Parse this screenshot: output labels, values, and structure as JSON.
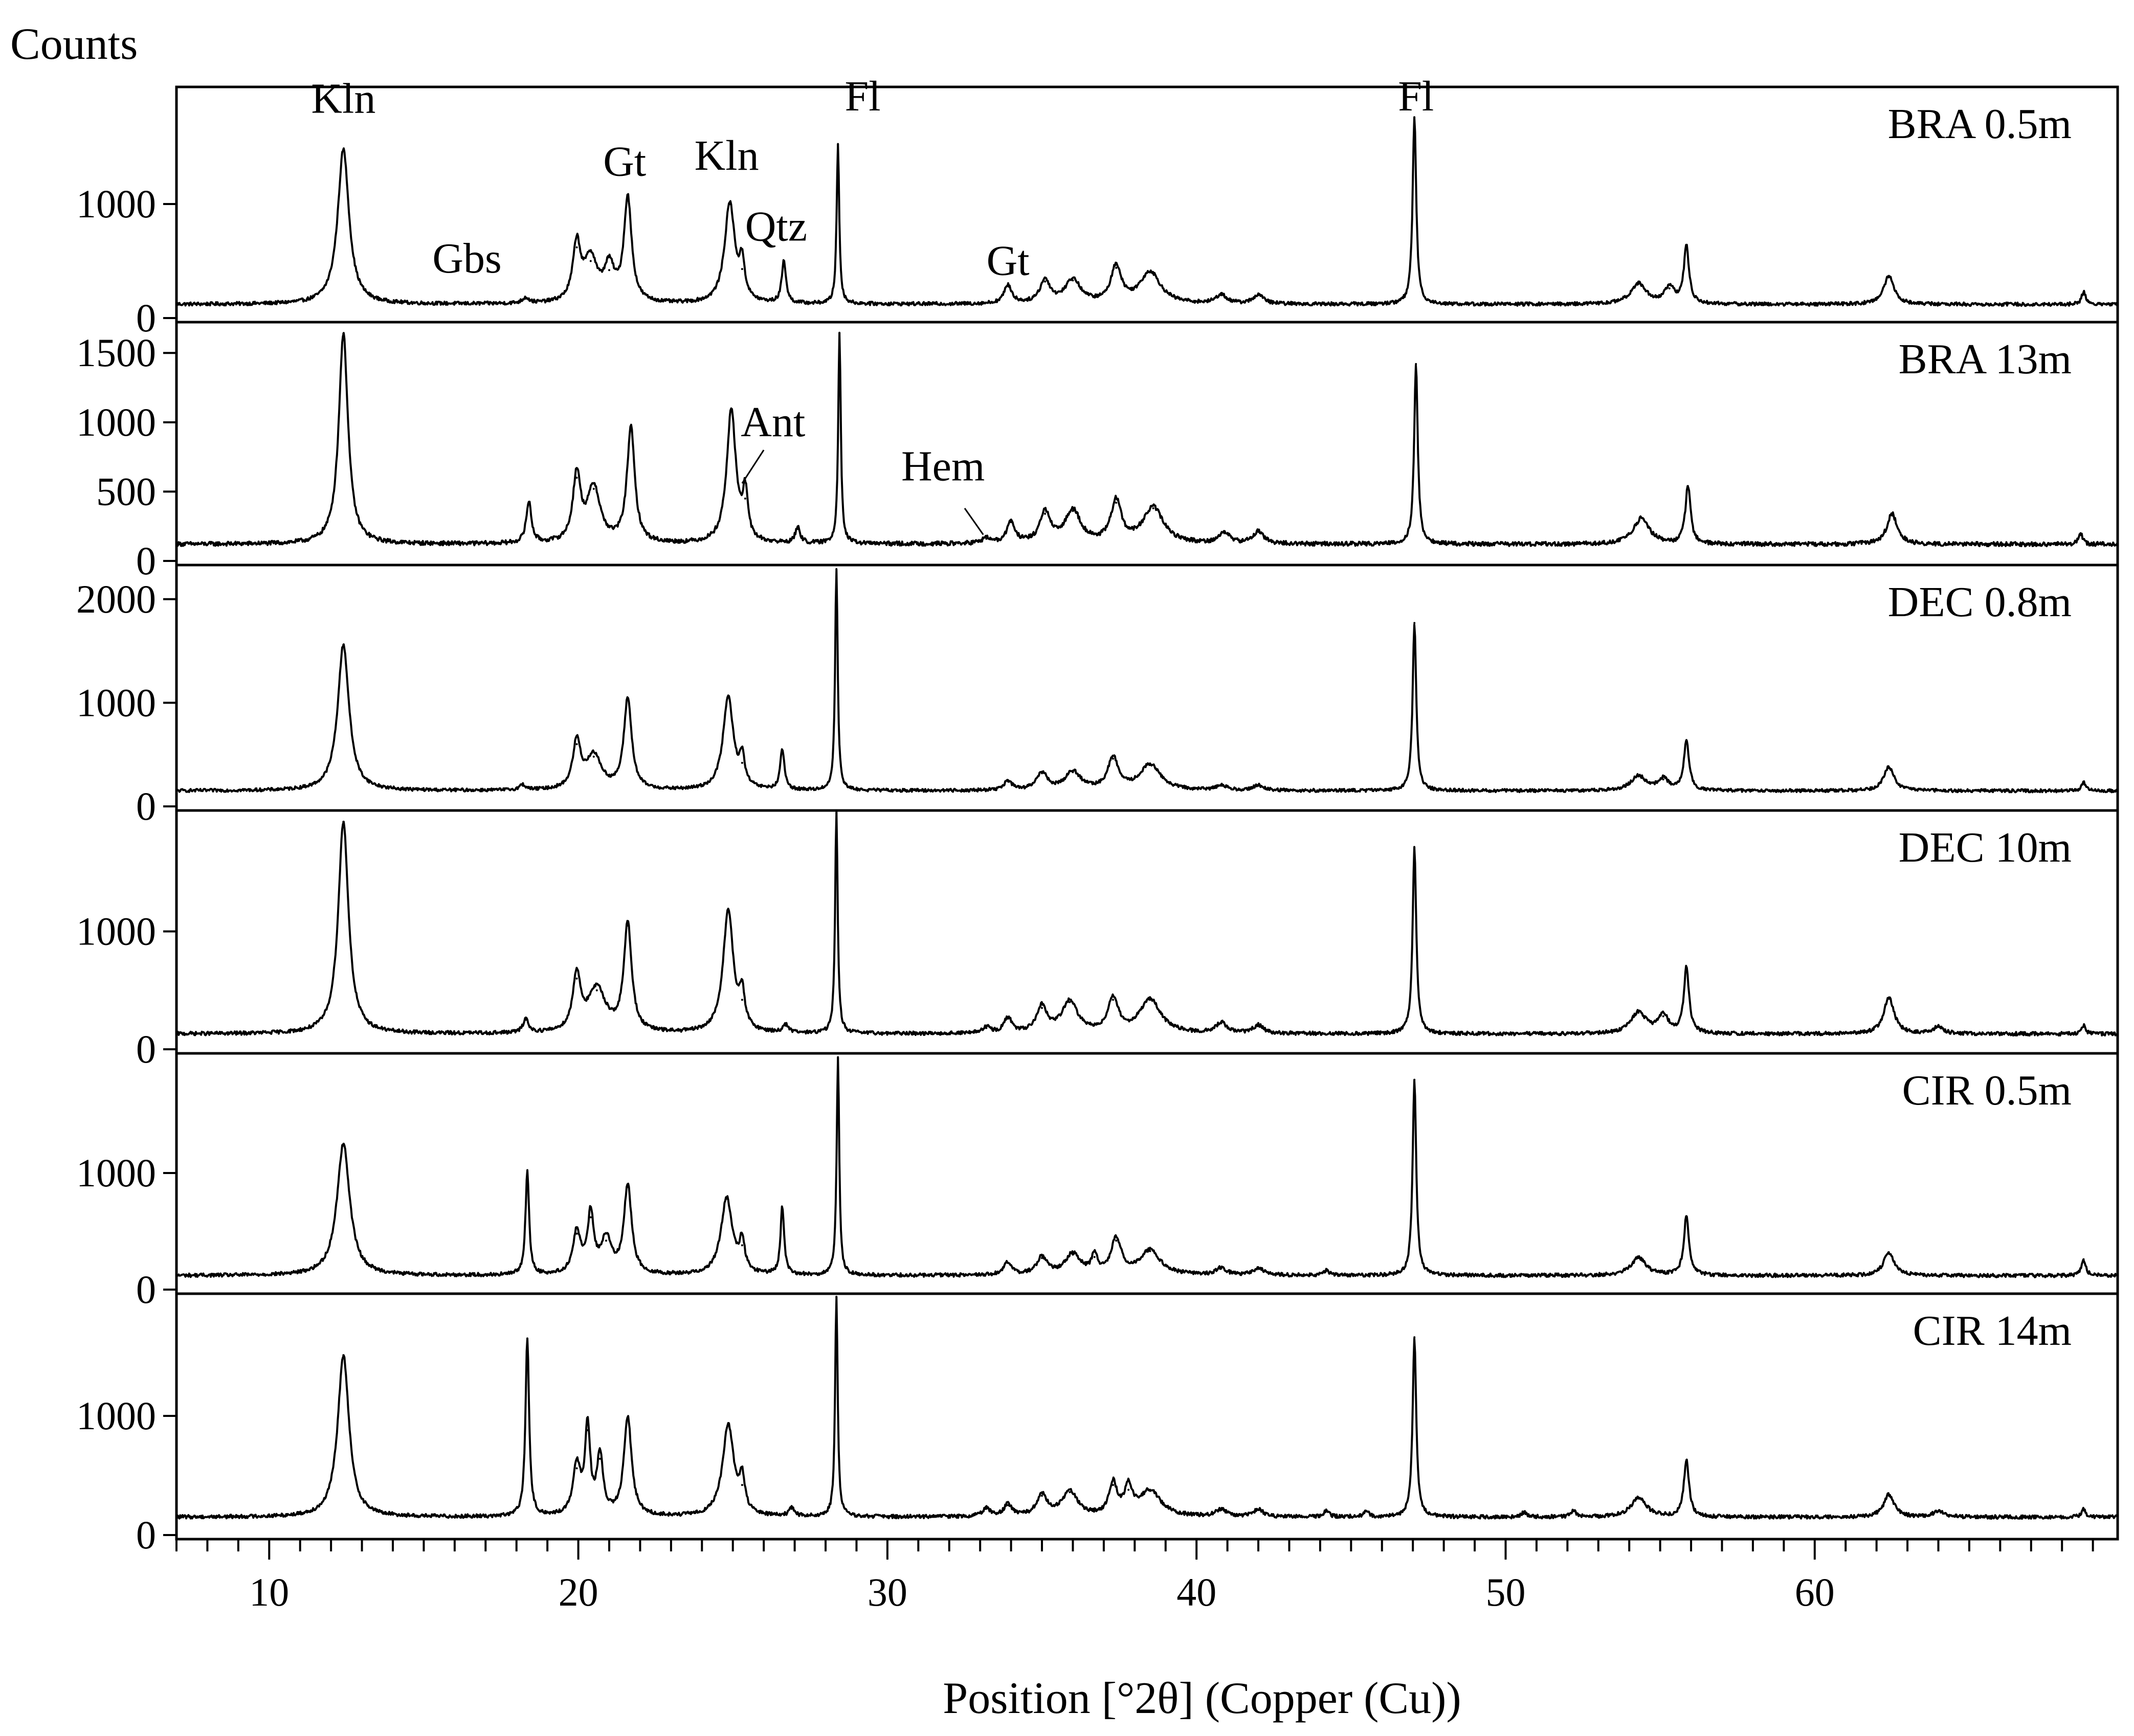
{
  "chart_data": {
    "type": "line",
    "y_axis_title": "Counts",
    "x_axis_title": "Position [°2θ] (Copper (Cu))",
    "xlim": [
      7,
      69.8
    ],
    "x_ticks": [
      10,
      20,
      30,
      40,
      50,
      60
    ],
    "panels": [
      {
        "label": "BRA 0.5m",
        "ylim": [
          0,
          2000
        ],
        "y_ticks": [
          0,
          1000
        ],
        "baseline": 120,
        "peaks": [
          {
            "x": 12.4,
            "y": 1480,
            "w": 0.22
          },
          {
            "x": 18.3,
            "y": 170,
            "w": 0.12
          },
          {
            "x": 19.95,
            "y": 620,
            "w": 0.15
          },
          {
            "x": 20.4,
            "y": 500,
            "w": 0.25
          },
          {
            "x": 21.0,
            "y": 420,
            "w": 0.2
          },
          {
            "x": 21.6,
            "y": 1030,
            "w": 0.15
          },
          {
            "x": 24.9,
            "y": 1000,
            "w": 0.2
          },
          {
            "x": 25.3,
            "y": 430,
            "w": 0.1
          },
          {
            "x": 26.65,
            "y": 500,
            "w": 0.08
          },
          {
            "x": 28.4,
            "y": 1520,
            "w": 0.05
          },
          {
            "x": 33.9,
            "y": 280,
            "w": 0.15
          },
          {
            "x": 35.1,
            "y": 320,
            "w": 0.2
          },
          {
            "x": 36.0,
            "y": 330,
            "w": 0.3
          },
          {
            "x": 37.4,
            "y": 440,
            "w": 0.2
          },
          {
            "x": 38.5,
            "y": 400,
            "w": 0.4
          },
          {
            "x": 40.8,
            "y": 200,
            "w": 0.2
          },
          {
            "x": 42.0,
            "y": 200,
            "w": 0.2
          },
          {
            "x": 47.05,
            "y": 1760,
            "w": 0.07
          },
          {
            "x": 54.3,
            "y": 300,
            "w": 0.3
          },
          {
            "x": 55.3,
            "y": 260,
            "w": 0.2
          },
          {
            "x": 55.85,
            "y": 620,
            "w": 0.1
          },
          {
            "x": 62.4,
            "y": 370,
            "w": 0.2
          },
          {
            "x": 68.7,
            "y": 230,
            "w": 0.08
          }
        ]
      },
      {
        "label": "BRA 13m",
        "ylim": [
          0,
          1700
        ],
        "y_ticks": [
          0,
          500,
          1000,
          1500
        ],
        "baseline": 120,
        "peaks": [
          {
            "x": 12.4,
            "y": 1640,
            "w": 0.18
          },
          {
            "x": 18.4,
            "y": 420,
            "w": 0.1
          },
          {
            "x": 19.95,
            "y": 600,
            "w": 0.15
          },
          {
            "x": 20.5,
            "y": 520,
            "w": 0.25
          },
          {
            "x": 21.7,
            "y": 950,
            "w": 0.15
          },
          {
            "x": 24.95,
            "y": 1080,
            "w": 0.18
          },
          {
            "x": 25.4,
            "y": 450,
            "w": 0.1
          },
          {
            "x": 27.1,
            "y": 230,
            "w": 0.1
          },
          {
            "x": 28.45,
            "y": 1640,
            "w": 0.05
          },
          {
            "x": 33.2,
            "y": 160,
            "w": 0.15
          },
          {
            "x": 34.0,
            "y": 280,
            "w": 0.15
          },
          {
            "x": 35.1,
            "y": 340,
            "w": 0.2
          },
          {
            "x": 36.0,
            "y": 360,
            "w": 0.3
          },
          {
            "x": 37.4,
            "y": 420,
            "w": 0.2
          },
          {
            "x": 38.6,
            "y": 380,
            "w": 0.4
          },
          {
            "x": 40.9,
            "y": 200,
            "w": 0.2
          },
          {
            "x": 42.0,
            "y": 210,
            "w": 0.2
          },
          {
            "x": 47.1,
            "y": 1420,
            "w": 0.07
          },
          {
            "x": 54.4,
            "y": 310,
            "w": 0.3
          },
          {
            "x": 55.9,
            "y": 540,
            "w": 0.1
          },
          {
            "x": 62.5,
            "y": 340,
            "w": 0.2
          },
          {
            "x": 68.6,
            "y": 200,
            "w": 0.08
          }
        ]
      },
      {
        "label": "DEC 0.8m",
        "ylim": [
          0,
          2300
        ],
        "y_ticks": [
          0,
          1000,
          2000
        ],
        "baseline": 150,
        "peaks": [
          {
            "x": 12.4,
            "y": 1560,
            "w": 0.22
          },
          {
            "x": 18.2,
            "y": 200,
            "w": 0.12
          },
          {
            "x": 19.95,
            "y": 600,
            "w": 0.15
          },
          {
            "x": 20.5,
            "y": 480,
            "w": 0.3
          },
          {
            "x": 21.6,
            "y": 1030,
            "w": 0.15
          },
          {
            "x": 24.85,
            "y": 1050,
            "w": 0.2
          },
          {
            "x": 25.3,
            "y": 420,
            "w": 0.1
          },
          {
            "x": 26.6,
            "y": 540,
            "w": 0.08
          },
          {
            "x": 28.35,
            "y": 2290,
            "w": 0.05
          },
          {
            "x": 33.9,
            "y": 240,
            "w": 0.15
          },
          {
            "x": 35.0,
            "y": 320,
            "w": 0.2
          },
          {
            "x": 36.0,
            "y": 330,
            "w": 0.3
          },
          {
            "x": 37.3,
            "y": 460,
            "w": 0.2
          },
          {
            "x": 38.5,
            "y": 400,
            "w": 0.4
          },
          {
            "x": 40.8,
            "y": 200,
            "w": 0.2
          },
          {
            "x": 42.0,
            "y": 200,
            "w": 0.2
          },
          {
            "x": 47.05,
            "y": 1770,
            "w": 0.07
          },
          {
            "x": 54.3,
            "y": 290,
            "w": 0.3
          },
          {
            "x": 55.1,
            "y": 260,
            "w": 0.2
          },
          {
            "x": 55.85,
            "y": 640,
            "w": 0.1
          },
          {
            "x": 62.4,
            "y": 380,
            "w": 0.2
          },
          {
            "x": 68.7,
            "y": 230,
            "w": 0.08
          }
        ]
      },
      {
        "label": "DEC 10m",
        "ylim": [
          0,
          2000
        ],
        "y_ticks": [
          0,
          1000
        ],
        "baseline": 130,
        "peaks": [
          {
            "x": 12.4,
            "y": 1930,
            "w": 0.2
          },
          {
            "x": 18.3,
            "y": 250,
            "w": 0.1
          },
          {
            "x": 19.95,
            "y": 600,
            "w": 0.15
          },
          {
            "x": 20.6,
            "y": 500,
            "w": 0.35
          },
          {
            "x": 21.6,
            "y": 1050,
            "w": 0.15
          },
          {
            "x": 24.85,
            "y": 1170,
            "w": 0.2
          },
          {
            "x": 25.3,
            "y": 420,
            "w": 0.1
          },
          {
            "x": 26.7,
            "y": 200,
            "w": 0.1
          },
          {
            "x": 28.35,
            "y": 2000,
            "w": 0.05
          },
          {
            "x": 33.2,
            "y": 180,
            "w": 0.15
          },
          {
            "x": 33.9,
            "y": 260,
            "w": 0.15
          },
          {
            "x": 35.0,
            "y": 350,
            "w": 0.2
          },
          {
            "x": 35.9,
            "y": 400,
            "w": 0.3
          },
          {
            "x": 37.3,
            "y": 420,
            "w": 0.2
          },
          {
            "x": 38.5,
            "y": 420,
            "w": 0.4
          },
          {
            "x": 40.8,
            "y": 220,
            "w": 0.2
          },
          {
            "x": 42.0,
            "y": 200,
            "w": 0.2
          },
          {
            "x": 47.05,
            "y": 1710,
            "w": 0.07
          },
          {
            "x": 54.3,
            "y": 310,
            "w": 0.3
          },
          {
            "x": 55.1,
            "y": 280,
            "w": 0.2
          },
          {
            "x": 55.85,
            "y": 690,
            "w": 0.1
          },
          {
            "x": 62.4,
            "y": 440,
            "w": 0.2
          },
          {
            "x": 64.0,
            "y": 190,
            "w": 0.2
          },
          {
            "x": 68.7,
            "y": 200,
            "w": 0.08
          }
        ]
      },
      {
        "label": "CIR 0.5m",
        "ylim": [
          0,
          2000
        ],
        "y_ticks": [
          0,
          1000
        ],
        "baseline": 120,
        "peaks": [
          {
            "x": 12.4,
            "y": 1250,
            "w": 0.25
          },
          {
            "x": 18.35,
            "y": 1000,
            "w": 0.07
          },
          {
            "x": 19.95,
            "y": 480,
            "w": 0.15
          },
          {
            "x": 20.4,
            "y": 620,
            "w": 0.12
          },
          {
            "x": 20.9,
            "y": 420,
            "w": 0.2
          },
          {
            "x": 21.6,
            "y": 880,
            "w": 0.15
          },
          {
            "x": 24.8,
            "y": 780,
            "w": 0.22
          },
          {
            "x": 25.3,
            "y": 380,
            "w": 0.1
          },
          {
            "x": 26.6,
            "y": 700,
            "w": 0.07
          },
          {
            "x": 28.4,
            "y": 1980,
            "w": 0.05
          },
          {
            "x": 33.9,
            "y": 230,
            "w": 0.15
          },
          {
            "x": 35.0,
            "y": 270,
            "w": 0.2
          },
          {
            "x": 36.0,
            "y": 300,
            "w": 0.3
          },
          {
            "x": 36.7,
            "y": 280,
            "w": 0.1
          },
          {
            "x": 37.4,
            "y": 420,
            "w": 0.2
          },
          {
            "x": 38.5,
            "y": 330,
            "w": 0.4
          },
          {
            "x": 40.8,
            "y": 180,
            "w": 0.2
          },
          {
            "x": 42.0,
            "y": 180,
            "w": 0.2
          },
          {
            "x": 44.2,
            "y": 160,
            "w": 0.1
          },
          {
            "x": 47.05,
            "y": 1800,
            "w": 0.07
          },
          {
            "x": 54.3,
            "y": 270,
            "w": 0.3
          },
          {
            "x": 55.85,
            "y": 630,
            "w": 0.1
          },
          {
            "x": 62.4,
            "y": 320,
            "w": 0.2
          },
          {
            "x": 68.7,
            "y": 260,
            "w": 0.08
          }
        ]
      },
      {
        "label": "CIR 14m",
        "ylim": [
          0,
          2000
        ],
        "y_ticks": [
          0,
          1000
        ],
        "baseline": 150,
        "peaks": [
          {
            "x": 12.4,
            "y": 1510,
            "w": 0.22
          },
          {
            "x": 18.35,
            "y": 1650,
            "w": 0.07
          },
          {
            "x": 19.95,
            "y": 560,
            "w": 0.15
          },
          {
            "x": 20.3,
            "y": 880,
            "w": 0.1
          },
          {
            "x": 20.7,
            "y": 640,
            "w": 0.12
          },
          {
            "x": 21.6,
            "y": 980,
            "w": 0.15
          },
          {
            "x": 24.85,
            "y": 920,
            "w": 0.22
          },
          {
            "x": 25.3,
            "y": 420,
            "w": 0.1
          },
          {
            "x": 26.9,
            "y": 220,
            "w": 0.1
          },
          {
            "x": 28.35,
            "y": 2000,
            "w": 0.05
          },
          {
            "x": 33.2,
            "y": 220,
            "w": 0.15
          },
          {
            "x": 33.9,
            "y": 250,
            "w": 0.15
          },
          {
            "x": 35.0,
            "y": 330,
            "w": 0.2
          },
          {
            "x": 35.9,
            "y": 360,
            "w": 0.3
          },
          {
            "x": 37.3,
            "y": 420,
            "w": 0.15
          },
          {
            "x": 37.8,
            "y": 380,
            "w": 0.15
          },
          {
            "x": 38.5,
            "y": 370,
            "w": 0.4
          },
          {
            "x": 40.8,
            "y": 210,
            "w": 0.2
          },
          {
            "x": 42.0,
            "y": 210,
            "w": 0.2
          },
          {
            "x": 44.2,
            "y": 200,
            "w": 0.1
          },
          {
            "x": 45.5,
            "y": 200,
            "w": 0.1
          },
          {
            "x": 47.05,
            "y": 1660,
            "w": 0.07
          },
          {
            "x": 50.6,
            "y": 190,
            "w": 0.1
          },
          {
            "x": 52.2,
            "y": 200,
            "w": 0.1
          },
          {
            "x": 54.3,
            "y": 310,
            "w": 0.3
          },
          {
            "x": 55.85,
            "y": 630,
            "w": 0.1
          },
          {
            "x": 62.4,
            "y": 340,
            "w": 0.2
          },
          {
            "x": 64.0,
            "y": 200,
            "w": 0.2
          },
          {
            "x": 68.7,
            "y": 220,
            "w": 0.08
          }
        ]
      }
    ],
    "annotations": [
      {
        "panel": 0,
        "text": "Kln",
        "x": 12.4,
        "y": 1800
      },
      {
        "panel": 0,
        "text": "Gbs",
        "x": 16.4,
        "y": 400
      },
      {
        "panel": 0,
        "text": "Gt",
        "x": 21.5,
        "y": 1250
      },
      {
        "panel": 0,
        "text": "Kln",
        "x": 24.8,
        "y": 1300
      },
      {
        "panel": 0,
        "text": "Qtz",
        "x": 26.4,
        "y": 680
      },
      {
        "panel": 0,
        "text": "Fl",
        "x": 29.2,
        "y": 1820
      },
      {
        "panel": 0,
        "text": "Gt",
        "x": 33.9,
        "y": 380
      },
      {
        "panel": 0,
        "text": "Fl",
        "x": 47.1,
        "y": 1820
      },
      {
        "panel": 1,
        "text": "Ant",
        "x": 26.3,
        "y": 900
      },
      {
        "panel": 1,
        "text": "Hem",
        "x": 31.8,
        "y": 580
      }
    ],
    "leaders": [
      {
        "panel": 1,
        "x1": 26.0,
        "y1": 800,
        "x2": 25.3,
        "y2": 560
      },
      {
        "panel": 1,
        "x1": 32.5,
        "y1": 380,
        "x2": 33.1,
        "y2": 190
      }
    ]
  }
}
